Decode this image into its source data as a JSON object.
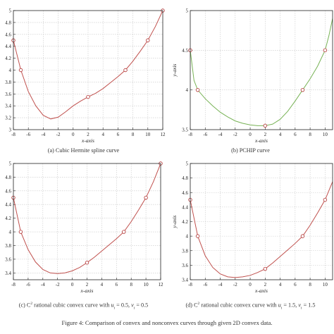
{
  "figure_caption": "Figure 4: Comparison of convex and nonconvex curves through given 2D convex data.",
  "captions": {
    "a": "(a)  Cubic Hermite spline curve",
    "b": "(b)  PCHIP curve",
    "c_prefix": "(c)  C",
    "c_sup": "2",
    "c_mid": " rational cubic convex curve with ",
    "c_u": "u",
    "c_u_eq": " = 0.5, ",
    "c_v": "v",
    "c_v_eq": " = 0.5",
    "d_prefix": "(d)  C",
    "d_sup": "2",
    "d_mid": " rational cubic convex curve with ",
    "d_u": "u",
    "d_u_eq": " = 1.5, ",
    "d_v": "v",
    "d_v_eq": " = 1.5",
    "sub_i": "i"
  },
  "colors": {
    "hermite_curve": "#c0504d",
    "pchip_curve": "#77b255",
    "rational_curve": "#c0504d",
    "marker": "#b03030",
    "grid": "#c8c8c8",
    "axis": "#222222"
  },
  "chart_data": [
    {
      "id": "a",
      "type": "line",
      "curve": "cubic-hermite",
      "xlabel": "x-axis",
      "ylabel": "",
      "xlim": [
        -8,
        12
      ],
      "ylim": [
        3,
        5
      ],
      "xticks": [
        "-8",
        "-6",
        "-4",
        "-2",
        "0",
        "2",
        "4",
        "6",
        "8",
        "10",
        "12"
      ],
      "yticks": [
        "3",
        "3.2",
        "3.4",
        "3.6",
        "3.8",
        "4",
        "4.2",
        "4.4",
        "4.6",
        "4.8",
        "5"
      ],
      "grid": true,
      "points": [
        [
          -8,
          4.5
        ],
        [
          -7,
          4.0
        ],
        [
          2,
          3.55
        ],
        [
          7,
          4.0
        ],
        [
          10,
          4.5
        ],
        [
          12,
          5.0
        ]
      ],
      "curve_points": [
        [
          -8,
          4.5
        ],
        [
          -7,
          4.0
        ],
        [
          -6,
          3.64
        ],
        [
          -5,
          3.4
        ],
        [
          -4,
          3.24
        ],
        [
          -3,
          3.18
        ],
        [
          -2,
          3.21
        ],
        [
          -1,
          3.3
        ],
        [
          0,
          3.4
        ],
        [
          1,
          3.48
        ],
        [
          2,
          3.55
        ],
        [
          3,
          3.61
        ],
        [
          4,
          3.69
        ],
        [
          5,
          3.79
        ],
        [
          6,
          3.89
        ],
        [
          7,
          4.0
        ],
        [
          8,
          4.15
        ],
        [
          9,
          4.32
        ],
        [
          10,
          4.5
        ],
        [
          11,
          4.73
        ],
        [
          12,
          5.0
        ]
      ]
    },
    {
      "id": "b",
      "type": "line",
      "curve": "pchip",
      "xlabel": "x-axis",
      "ylabel": "y-axis",
      "xlim": [
        -8,
        11
      ],
      "ylim": [
        3.5,
        5
      ],
      "xticks": [
        "-8",
        "-6",
        "-4",
        "-2",
        "0",
        "2",
        "4",
        "6",
        "8",
        "10"
      ],
      "yticks": [
        "3.5",
        "4",
        "4.5",
        "5"
      ],
      "grid": true,
      "points": [
        [
          -8,
          4.5
        ],
        [
          -7,
          4.0
        ],
        [
          2,
          3.55
        ],
        [
          7,
          4.0
        ],
        [
          10,
          4.5
        ]
      ],
      "curve_points": [
        [
          -8,
          4.5
        ],
        [
          -7.5,
          4.12
        ],
        [
          -7,
          4.0
        ],
        [
          -6,
          3.89
        ],
        [
          -5,
          3.8
        ],
        [
          -4,
          3.72
        ],
        [
          -3,
          3.66
        ],
        [
          -2,
          3.61
        ],
        [
          -1,
          3.58
        ],
        [
          0,
          3.56
        ],
        [
          1,
          3.55
        ],
        [
          2,
          3.55
        ],
        [
          3,
          3.57
        ],
        [
          4,
          3.63
        ],
        [
          5,
          3.73
        ],
        [
          6,
          3.86
        ],
        [
          7,
          4.0
        ],
        [
          8,
          4.14
        ],
        [
          9,
          4.3
        ],
        [
          10,
          4.5
        ],
        [
          10.5,
          4.68
        ],
        [
          11,
          4.9
        ]
      ]
    },
    {
      "id": "c",
      "type": "line",
      "curve": "rational-cubic",
      "xlabel": "x-axis",
      "ylabel": "",
      "xlim": [
        -8,
        12
      ],
      "ylim": [
        3.3,
        5
      ],
      "xticks": [
        "-8",
        "-6",
        "-4",
        "-2",
        "0",
        "2",
        "4",
        "6",
        "8",
        "10",
        "12"
      ],
      "yticks": [
        "3.4",
        "3.6",
        "3.8",
        "4",
        "4.2",
        "4.4",
        "4.6",
        "4.8",
        "5"
      ],
      "grid": true,
      "points": [
        [
          -8,
          4.5
        ],
        [
          -7,
          4.0
        ],
        [
          2,
          3.55
        ],
        [
          7,
          4.0
        ],
        [
          10,
          4.5
        ],
        [
          12,
          5.0
        ]
      ],
      "curve_points": [
        [
          -8,
          4.5
        ],
        [
          -7,
          4.0
        ],
        [
          -6,
          3.74
        ],
        [
          -5,
          3.56
        ],
        [
          -4,
          3.45
        ],
        [
          -3,
          3.4
        ],
        [
          -2,
          3.39
        ],
        [
          -1,
          3.4
        ],
        [
          0,
          3.43
        ],
        [
          1,
          3.48
        ],
        [
          2,
          3.55
        ],
        [
          3,
          3.63
        ],
        [
          4,
          3.72
        ],
        [
          5,
          3.81
        ],
        [
          6,
          3.9
        ],
        [
          7,
          4.0
        ],
        [
          8,
          4.15
        ],
        [
          9,
          4.32
        ],
        [
          10,
          4.5
        ],
        [
          11,
          4.73
        ],
        [
          12,
          5.0
        ]
      ]
    },
    {
      "id": "d",
      "type": "line",
      "curve": "rational-cubic",
      "xlabel": "x-axis",
      "ylabel": "y-axis",
      "xlim": [
        -8,
        11
      ],
      "ylim": [
        3.4,
        5
      ],
      "xticks": [
        "-8",
        "-6",
        "-4",
        "-2",
        "0",
        "2",
        "4",
        "6",
        "8",
        "10"
      ],
      "yticks": [
        "3.4",
        "3.6",
        "3.8",
        "4",
        "4.2",
        "4.4",
        "4.6",
        "4.8",
        "5"
      ],
      "grid": true,
      "points": [
        [
          -8,
          4.5
        ],
        [
          -7,
          4.0
        ],
        [
          2,
          3.55
        ],
        [
          7,
          4.0
        ],
        [
          10,
          4.5
        ]
      ],
      "curve_points": [
        [
          -8,
          4.5
        ],
        [
          -7,
          4.0
        ],
        [
          -6,
          3.73
        ],
        [
          -5,
          3.57
        ],
        [
          -4,
          3.48
        ],
        [
          -3,
          3.44
        ],
        [
          -2,
          3.43
        ],
        [
          -1,
          3.44
        ],
        [
          0,
          3.46
        ],
        [
          1,
          3.5
        ],
        [
          2,
          3.55
        ],
        [
          3,
          3.63
        ],
        [
          4,
          3.72
        ],
        [
          5,
          3.81
        ],
        [
          6,
          3.9
        ],
        [
          7,
          4.0
        ],
        [
          8,
          4.15
        ],
        [
          9,
          4.32
        ],
        [
          10,
          4.5
        ],
        [
          11,
          4.75
        ]
      ]
    }
  ]
}
